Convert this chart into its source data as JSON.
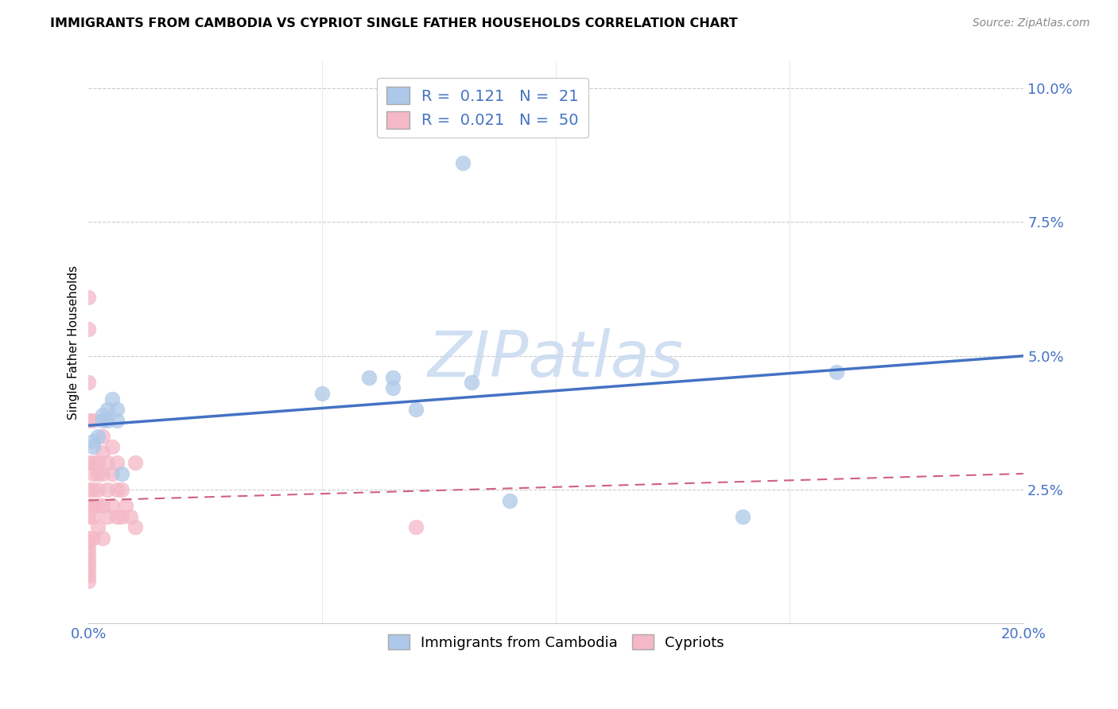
{
  "title": "IMMIGRANTS FROM CAMBODIA VS CYPRIOT SINGLE FATHER HOUSEHOLDS CORRELATION CHART",
  "source": "Source: ZipAtlas.com",
  "ylabel": "Single Father Households",
  "xlim": [
    0.0,
    0.2
  ],
  "ylim": [
    0.0,
    0.105
  ],
  "blue_R": 0.121,
  "blue_N": 21,
  "pink_R": 0.021,
  "pink_N": 50,
  "blue_color": "#adc8e8",
  "blue_line_color": "#4472c4",
  "pink_color": "#f4b8c8",
  "pink_line_color": "#d06080",
  "watermark_text": "ZIPatlas",
  "watermark_color": "#c8daf0",
  "blue_line_x": [
    0.0,
    0.2
  ],
  "blue_line_y": [
    0.037,
    0.05
  ],
  "pink_line_x": [
    0.0,
    0.2
  ],
  "pink_line_y": [
    0.023,
    0.028
  ],
  "blue_points_x": [
    0.001,
    0.001,
    0.002,
    0.003,
    0.003,
    0.004,
    0.004,
    0.005,
    0.006,
    0.006,
    0.007,
    0.05,
    0.06,
    0.065,
    0.065,
    0.07,
    0.08,
    0.082,
    0.09,
    0.14,
    0.16
  ],
  "blue_points_y": [
    0.033,
    0.034,
    0.035,
    0.038,
    0.039,
    0.038,
    0.04,
    0.042,
    0.038,
    0.04,
    0.028,
    0.043,
    0.046,
    0.044,
    0.046,
    0.04,
    0.086,
    0.045,
    0.023,
    0.02,
    0.047
  ],
  "pink_points_x": [
    0.0,
    0.0,
    0.0,
    0.0,
    0.0,
    0.0,
    0.0,
    0.0,
    0.0,
    0.0,
    0.001,
    0.001,
    0.001,
    0.001,
    0.001,
    0.001,
    0.001,
    0.002,
    0.002,
    0.002,
    0.002,
    0.002,
    0.003,
    0.003,
    0.003,
    0.003,
    0.003,
    0.004,
    0.004,
    0.004,
    0.005,
    0.005,
    0.005,
    0.006,
    0.006,
    0.006,
    0.007,
    0.007,
    0.008,
    0.009,
    0.01,
    0.01,
    0.07,
    0.0,
    0.0,
    0.0,
    0.0,
    0.0,
    0.0,
    0.0
  ],
  "pink_points_y": [
    0.061,
    0.055,
    0.045,
    0.038,
    0.03,
    0.025,
    0.022,
    0.02,
    0.016,
    0.012,
    0.03,
    0.028,
    0.025,
    0.022,
    0.02,
    0.016,
    0.038,
    0.03,
    0.028,
    0.025,
    0.022,
    0.018,
    0.035,
    0.032,
    0.028,
    0.022,
    0.016,
    0.03,
    0.025,
    0.02,
    0.033,
    0.028,
    0.022,
    0.03,
    0.025,
    0.02,
    0.025,
    0.02,
    0.022,
    0.02,
    0.03,
    0.018,
    0.018,
    0.015,
    0.014,
    0.013,
    0.011,
    0.009,
    0.008,
    0.01
  ]
}
